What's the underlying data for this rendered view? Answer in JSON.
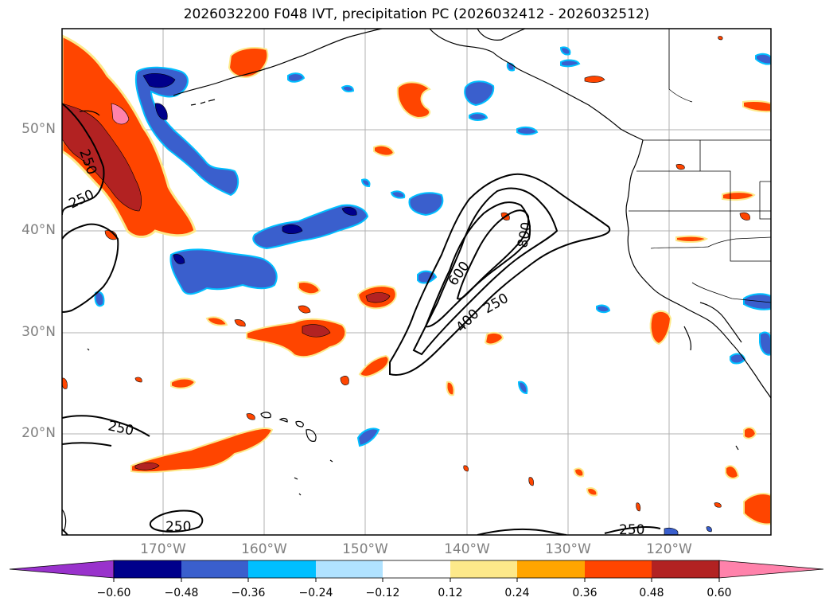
{
  "title": "2026032200 F048 IVT, precipitation PC (2026032412 - 2026032512)",
  "lat_ticks": [
    "50°N",
    "40°N",
    "30°N",
    "20°N"
  ],
  "lon_ticks": [
    "170°W",
    "160°W",
    "150°W",
    "140°W",
    "130°W",
    "120°W"
  ],
  "colorbar": {
    "ticks": [
      "−0.60",
      "−0.48",
      "−0.36",
      "−0.24",
      "−0.12",
      "0.12",
      "0.24",
      "0.36",
      "0.48",
      "0.60"
    ],
    "colors": [
      "#9932cc",
      "#00008b",
      "#3a5fcd",
      "#00bfff",
      "#b0e2ff",
      "#ffffff",
      "#fde98a",
      "#ffa500",
      "#ff4500",
      "#b22222",
      "#ff82ab"
    ]
  },
  "contour_labels": [
    "250",
    "250",
    "250",
    "250",
    "250",
    "250",
    "600",
    "800",
    "400"
  ],
  "colors": {
    "precip_positive": "#ff4500",
    "precip_strong": "#b22222",
    "precip_edge": "#fde98a",
    "precip_negative": "#3a5fcd",
    "precip_neg_strong": "#00008b",
    "precip_neg_edge": "#00bfff"
  }
}
